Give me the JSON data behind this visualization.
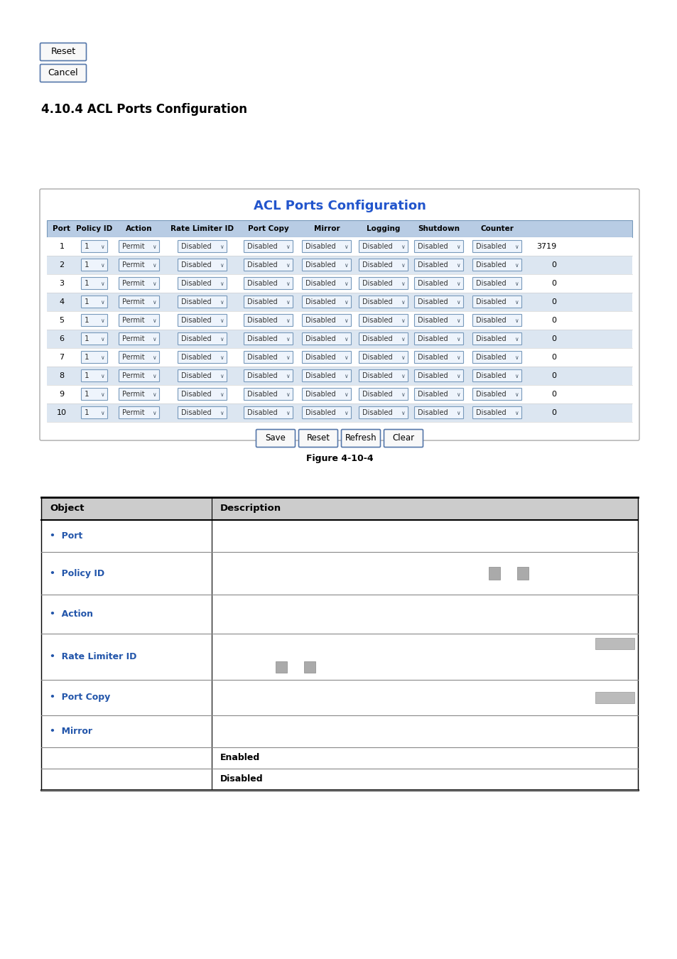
{
  "title_section": "4.10.4 ACL Ports Configuration",
  "table_title": "ACL Ports Configuration",
  "table_title_color": "#2255CC",
  "bg_color": "#ffffff",
  "header_bg": "#B8CCE4",
  "row_colors": [
    "#ffffff",
    "#dce6f1"
  ],
  "columns": [
    "Port",
    "Policy ID",
    "Action",
    "Rate Limiter ID",
    "Port Copy",
    "Mirror",
    "Logging",
    "Shutdown",
    "Counter"
  ],
  "num_rows": 10,
  "counter_values": [
    3719,
    0,
    0,
    0,
    0,
    0,
    0,
    0,
    0,
    0
  ],
  "bottom_buttons": [
    "Save",
    "Reset",
    "Refresh",
    "Clear"
  ],
  "figure_caption": "Figure 4-10-4",
  "top_buttons": [
    "Reset",
    "Cancel"
  ],
  "obj_rows": [
    {
      "obj": "Port",
      "desc": "",
      "bold_desc": false
    },
    {
      "obj": "Policy ID",
      "desc": "",
      "bold_desc": false,
      "has_small_rects": true
    },
    {
      "obj": "Action",
      "desc": "",
      "bold_desc": false
    },
    {
      "obj": "Rate Limiter ID",
      "desc": "",
      "bold_desc": false,
      "has_rate_bar": true
    },
    {
      "obj": "Port Copy",
      "desc": "",
      "bold_desc": false,
      "has_copy_bar": true
    },
    {
      "obj": "Mirror",
      "desc": "",
      "bold_desc": false
    },
    {
      "obj": "",
      "desc": "Enabled",
      "bold_desc": true
    },
    {
      "obj": "",
      "desc": "Disabled",
      "bold_desc": true
    }
  ]
}
